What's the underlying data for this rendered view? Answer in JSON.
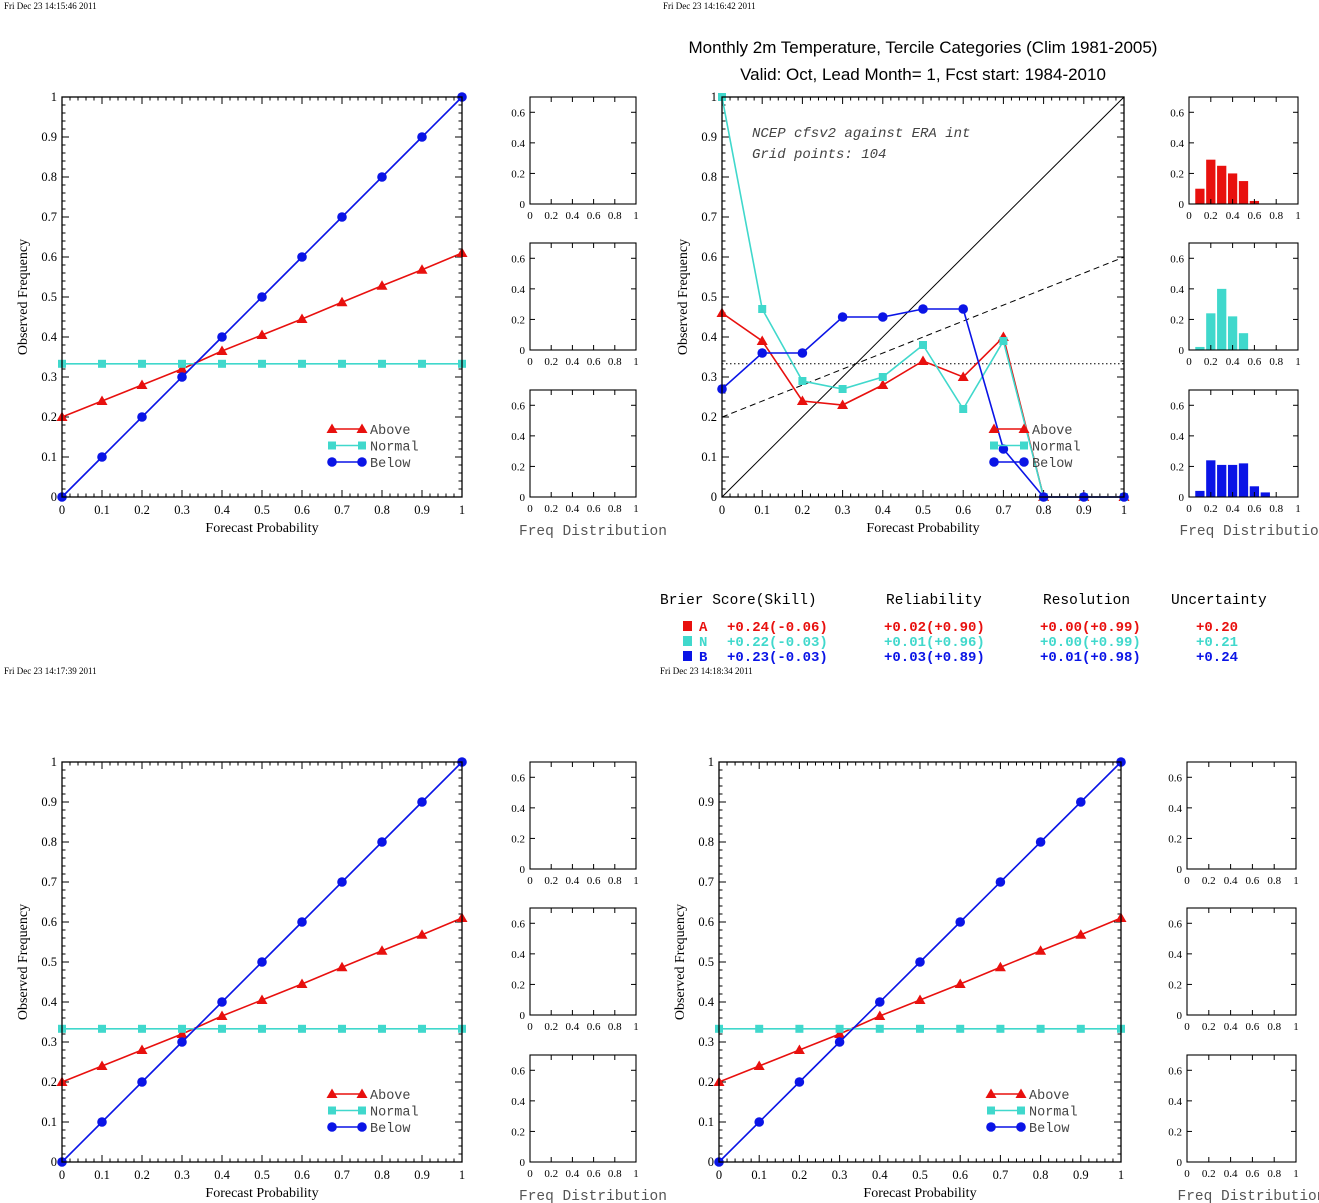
{
  "colors": {
    "above": "#e8100e",
    "normal": "#40d8cc",
    "below": "#0a14e6"
  },
  "timestamps": [
    "Fri Dec 23 14:15:46 2011",
    "Fri Dec 23 14:16:42 2011",
    "Fri Dec 23 14:17:39 2011",
    "Fri Dec 23 14:18:34 2011"
  ],
  "title_line1": "Monthly 2m Temperature, Tercile Categories (Clim 1981-2005)",
  "title_line2": "Valid: Oct, Lead Month= 1, Fcst start: 1984-2010",
  "annotation_line1": "NCEP cfsv2 against ERA int",
  "annotation_line2": "Grid points:  104",
  "scores": {
    "headers": [
      "Brier Score(Skill)",
      "Reliability",
      "Resolution",
      "Uncertainty"
    ],
    "rows": [
      {
        "cat": "A",
        "key": "above",
        "brier": "+0.24(-0.06)",
        "reliability": "+0.02(+0.90)",
        "resolution": "+0.00(+0.99)",
        "uncertainty": "+0.20"
      },
      {
        "cat": "N",
        "key": "normal",
        "brier": "+0.22(-0.03)",
        "reliability": "+0.01(+0.96)",
        "resolution": "+0.00(+0.99)",
        "uncertainty": "+0.21"
      },
      {
        "cat": "B",
        "key": "below",
        "brier": "+0.23(-0.03)",
        "reliability": "+0.03(+0.89)",
        "resolution": "+0.01(+0.98)",
        "uncertainty": "+0.24"
      }
    ]
  },
  "chart_data": [
    {
      "type": "line",
      "panel": "top-left",
      "xlabel": "Forecast Probability",
      "ylabel": "Observed Frequency",
      "xlim": [
        0,
        1
      ],
      "ylim": [
        0,
        1
      ],
      "x": [
        0,
        0.1,
        0.2,
        0.3,
        0.4,
        0.5,
        0.6,
        0.7,
        0.8,
        0.9,
        1
      ],
      "series": [
        {
          "name": "Above",
          "key": "above",
          "marker": "triangle",
          "values": [
            0.2,
            0.24,
            0.28,
            0.32,
            0.365,
            0.405,
            0.445,
            0.487,
            0.528,
            0.568,
            0.61
          ]
        },
        {
          "name": "Normal",
          "key": "normal",
          "marker": "square",
          "values": [
            0.333,
            0.333,
            0.333,
            0.333,
            0.333,
            0.333,
            0.333,
            0.333,
            0.333,
            0.333,
            0.333
          ]
        },
        {
          "name": "Below",
          "key": "below",
          "marker": "circle",
          "values": [
            0,
            0.1,
            0.2,
            0.3,
            0.4,
            0.5,
            0.6,
            0.7,
            0.8,
            0.9,
            1
          ]
        }
      ],
      "legend": "bottom-right",
      "histograms": {
        "xlabel": "Freq Distribution",
        "ylim": [
          0,
          0.7
        ],
        "xlim": [
          0,
          1
        ],
        "bins": []
      }
    },
    {
      "type": "line",
      "panel": "top-right",
      "xlabel": "Forecast Probability",
      "ylabel": "Observed Frequency",
      "xlim": [
        0,
        1
      ],
      "ylim": [
        0,
        1
      ],
      "x": [
        0,
        0.1,
        0.2,
        0.3,
        0.4,
        0.5,
        0.6,
        0.7,
        0.8,
        0.9,
        1
      ],
      "series": [
        {
          "name": "Above",
          "key": "above",
          "marker": "triangle",
          "values": [
            0.46,
            0.39,
            0.24,
            0.23,
            0.28,
            0.34,
            0.3,
            0.4,
            0,
            0,
            0
          ]
        },
        {
          "name": "Normal",
          "key": "normal",
          "marker": "square",
          "values": [
            1.0,
            0.47,
            0.29,
            0.27,
            0.3,
            0.38,
            0.22,
            0.39,
            0,
            0,
            0
          ]
        },
        {
          "name": "Below",
          "key": "below",
          "marker": "circle",
          "values": [
            0.27,
            0.36,
            0.36,
            0.45,
            0.45,
            0.47,
            0.47,
            0.12,
            0,
            0,
            0
          ]
        }
      ],
      "reference_lines": {
        "perfect_reliability": "diagonal",
        "no_skill": "dashed",
        "climatology": 0.333
      },
      "legend": "bottom-right",
      "histograms": {
        "xlabel": "Freq Distribution",
        "ylim": [
          0,
          0.7
        ],
        "xlim": [
          0,
          1
        ],
        "bins": [
          {
            "key": "above",
            "centers": [
              0.1,
              0.2,
              0.3,
              0.4,
              0.5,
              0.6
            ],
            "values": [
              0.1,
              0.29,
              0.25,
              0.2,
              0.15,
              0.02
            ]
          },
          {
            "key": "normal",
            "centers": [
              0.1,
              0.2,
              0.3,
              0.4,
              0.5
            ],
            "values": [
              0.02,
              0.24,
              0.4,
              0.22,
              0.11
            ]
          },
          {
            "key": "below",
            "centers": [
              0.1,
              0.2,
              0.3,
              0.4,
              0.5,
              0.6,
              0.7
            ],
            "values": [
              0.04,
              0.24,
              0.21,
              0.21,
              0.22,
              0.07,
              0.03
            ]
          }
        ]
      }
    },
    {
      "type": "line",
      "panel": "bottom-left",
      "xlabel": "Forecast Probability",
      "ylabel": "Observed Frequency",
      "xlim": [
        0,
        1
      ],
      "ylim": [
        0,
        1
      ],
      "x": [
        0,
        0.1,
        0.2,
        0.3,
        0.4,
        0.5,
        0.6,
        0.7,
        0.8,
        0.9,
        1
      ],
      "series": [
        {
          "name": "Above",
          "key": "above",
          "marker": "triangle",
          "values": [
            0.2,
            0.24,
            0.28,
            0.32,
            0.365,
            0.405,
            0.445,
            0.487,
            0.528,
            0.568,
            0.61
          ]
        },
        {
          "name": "Normal",
          "key": "normal",
          "marker": "square",
          "values": [
            0.333,
            0.333,
            0.333,
            0.333,
            0.333,
            0.333,
            0.333,
            0.333,
            0.333,
            0.333,
            0.333
          ]
        },
        {
          "name": "Below",
          "key": "below",
          "marker": "circle",
          "values": [
            0,
            0.1,
            0.2,
            0.3,
            0.4,
            0.5,
            0.6,
            0.7,
            0.8,
            0.9,
            1
          ]
        }
      ],
      "legend": "bottom-right",
      "histograms": {
        "xlabel": "Freq Distribution",
        "ylim": [
          0,
          0.7
        ],
        "xlim": [
          0,
          1
        ],
        "bins": []
      }
    },
    {
      "type": "line",
      "panel": "bottom-right",
      "xlabel": "Forecast Probability",
      "ylabel": "Observed Frequency",
      "xlim": [
        0,
        1
      ],
      "ylim": [
        0,
        1
      ],
      "x": [
        0,
        0.1,
        0.2,
        0.3,
        0.4,
        0.5,
        0.6,
        0.7,
        0.8,
        0.9,
        1
      ],
      "series": [
        {
          "name": "Above",
          "key": "above",
          "marker": "triangle",
          "values": [
            0.2,
            0.24,
            0.28,
            0.32,
            0.365,
            0.405,
            0.445,
            0.487,
            0.528,
            0.568,
            0.61
          ]
        },
        {
          "name": "Normal",
          "key": "normal",
          "marker": "square",
          "values": [
            0.333,
            0.333,
            0.333,
            0.333,
            0.333,
            0.333,
            0.333,
            0.333,
            0.333,
            0.333,
            0.333
          ]
        },
        {
          "name": "Below",
          "key": "below",
          "marker": "circle",
          "values": [
            0,
            0.1,
            0.2,
            0.3,
            0.4,
            0.5,
            0.6,
            0.7,
            0.8,
            0.9,
            1
          ]
        }
      ],
      "legend": "bottom-right",
      "histograms": {
        "xlabel": "Freq Distribution",
        "ylim": [
          0,
          0.7
        ],
        "xlim": [
          0,
          1
        ],
        "bins": []
      }
    }
  ]
}
